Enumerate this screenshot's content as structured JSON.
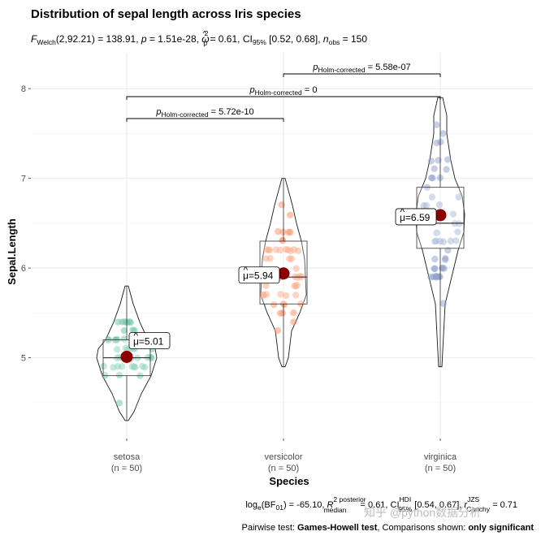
{
  "chart_data": {
    "type": "violin",
    "title": "Distribution of sepal length across Iris species",
    "subtitle": {
      "F_label": "F",
      "F_sub": "Welch",
      "F_args": "(2,92.21) = 138.91, ",
      "p_label": "p",
      "p_value": " = 1.51e-28, ",
      "omega_label": "ω",
      "omega_hat": "^",
      "omega_sup": "2",
      "omega_sub": "p",
      "omega_value": " = 0.61, CI",
      "ci_sub": "95%",
      "ci_value": " [0.52, 0.68], ",
      "n_label": "n",
      "n_sub": "obs",
      "n_value": " = 150"
    },
    "xlabel": "Species",
    "ylabel": "Sepal.Length",
    "ylim": [
      4.1,
      8.4
    ],
    "yticks": [
      "5",
      "6",
      "7",
      "8"
    ],
    "categories": [
      {
        "name": "setosa",
        "n_label": "(n = 50)",
        "color": "#66c2a5",
        "mean": 5.01,
        "mean_label": "5.01",
        "q1": 4.8,
        "median": 5.0,
        "q3": 5.2,
        "min": 4.3,
        "max": 5.8
      },
      {
        "name": "versicolor",
        "n_label": "(n = 50)",
        "color": "#fc8d62",
        "mean": 5.94,
        "mean_label": "5.94",
        "q1": 5.6,
        "median": 5.9,
        "q3": 6.3,
        "min": 4.9,
        "max": 7.0
      },
      {
        "name": "virginica",
        "n_label": "(n = 50)",
        "color": "#8da0cb",
        "mean": 6.59,
        "mean_label": "6.59",
        "q1": 6.22,
        "median": 6.5,
        "q3": 6.9,
        "min": 4.9,
        "max": 7.9
      }
    ],
    "mean_label_prefix": "μ",
    "mean_label_hat": "^",
    "mean_label_eq": "=",
    "comparisons": [
      {
        "from": 0,
        "to": 1,
        "label": "p",
        "label_sub": "Holm-corrected",
        "value": " = 5.72e-10"
      },
      {
        "from": 0,
        "to": 2,
        "label": "p",
        "label_sub": "Holm-corrected",
        "value": " = 0"
      },
      {
        "from": 1,
        "to": 2,
        "label": "p",
        "label_sub": "Holm-corrected",
        "value": " = 5.58e-07"
      }
    ],
    "caption": {
      "bf_prefix": "log",
      "bf_sub": "e",
      "bf_value": "(BF",
      "bf_sub2": "01",
      "bf_rest": ") = -65.10, ",
      "r2_label": "R",
      "r2_sup": "2 posterior",
      "r2_sub": "median",
      "r2_value": " = 0.61, CI",
      "ci_sup": "HDI",
      "ci_sub": "95%",
      "ci_value": " [0.54, 0.67], ",
      "r_label": "r",
      "r_sup": "JZS",
      "r_sub": "Cauchy",
      "r_value": " = 0.71",
      "line2_prefix": "Pairwise test: ",
      "line2_bold1": "Games-Howell test",
      "line2_mid": ", Comparisons shown: ",
      "line2_bold2": "only significant"
    },
    "watermark": "知乎 @python数据分析"
  }
}
